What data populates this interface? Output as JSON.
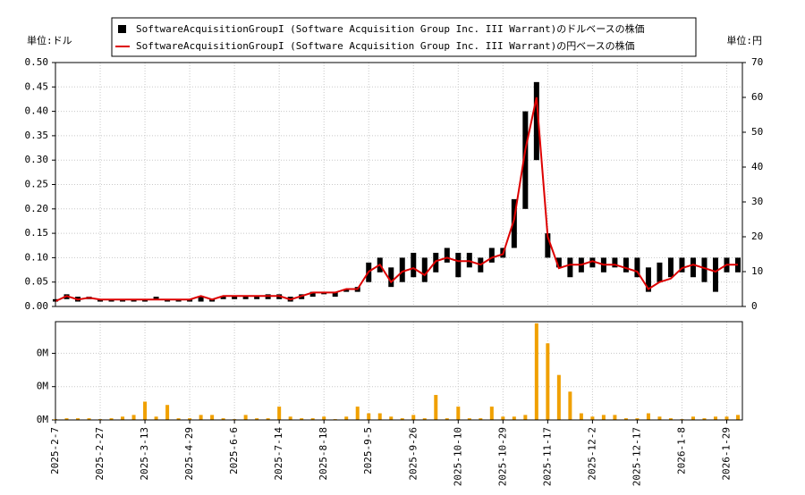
{
  "chart_data": [
    {
      "type": "range",
      "left_unit": "単位:ドル",
      "right_unit": "単位:円",
      "x": [
        0,
        5,
        10,
        15,
        20,
        25,
        30,
        35,
        40,
        45,
        50,
        55,
        60,
        65,
        70,
        75,
        80,
        85,
        90,
        95,
        100,
        105,
        110,
        115,
        120,
        125,
        130,
        135,
        140,
        145,
        150,
        155,
        160,
        165,
        170,
        175,
        180,
        185,
        190,
        195,
        200,
        205,
        210,
        215,
        220,
        225,
        230,
        235,
        240,
        245,
        250,
        255,
        260,
        265,
        270,
        275,
        280,
        285,
        290,
        295,
        300,
        305
      ],
      "xlim": [
        0,
        307
      ],
      "ylim": [
        0,
        0.5
      ],
      "yticks": [
        {
          "value": 0,
          "label": "0.00"
        },
        {
          "value": 0.05,
          "label": "0.05"
        },
        {
          "value": 0.1,
          "label": "0.10"
        },
        {
          "value": 0.15,
          "label": "0.15"
        },
        {
          "value": 0.2,
          "label": "0.20"
        },
        {
          "value": 0.25,
          "label": "0.25"
        },
        {
          "value": 0.3,
          "label": "0.30"
        },
        {
          "value": 0.35,
          "label": "0.35"
        },
        {
          "value": 0.4,
          "label": "0.40"
        },
        {
          "value": 0.45,
          "label": "0.45"
        },
        {
          "value": 0.5,
          "label": "0.50"
        }
      ],
      "y2lim": [
        0,
        70
      ],
      "y2ticks": [
        0,
        10,
        20,
        30,
        40,
        50,
        60,
        70
      ],
      "grid": true,
      "series": [
        {
          "name": "SoftwareAcquisitionGroupI (Software Acquisition Group Inc. III Warrant)のドルベースの株価",
          "color": "#000000",
          "high": [
            0.015,
            0.025,
            0.02,
            0.02,
            0.015,
            0.015,
            0.015,
            0.015,
            0.015,
            0.02,
            0.015,
            0.015,
            0.015,
            0.02,
            0.015,
            0.02,
            0.02,
            0.02,
            0.02,
            0.025,
            0.025,
            0.02,
            0.025,
            0.03,
            0.03,
            0.03,
            0.035,
            0.04,
            0.09,
            0.1,
            0.08,
            0.1,
            0.11,
            0.1,
            0.11,
            0.12,
            0.11,
            0.11,
            0.1,
            0.12,
            0.12,
            0.22,
            0.4,
            0.46,
            0.15,
            0.1,
            0.1,
            0.1,
            0.1,
            0.1,
            0.1,
            0.1,
            0.1,
            0.08,
            0.09,
            0.1,
            0.1,
            0.1,
            0.1,
            0.1,
            0.1,
            0.1
          ],
          "low": [
            0.01,
            0.015,
            0.01,
            0.015,
            0.01,
            0.01,
            0.01,
            0.01,
            0.01,
            0.015,
            0.01,
            0.01,
            0.01,
            0.01,
            0.01,
            0.015,
            0.015,
            0.015,
            0.015,
            0.015,
            0.015,
            0.01,
            0.015,
            0.02,
            0.025,
            0.02,
            0.03,
            0.03,
            0.05,
            0.07,
            0.04,
            0.05,
            0.06,
            0.05,
            0.07,
            0.09,
            0.06,
            0.08,
            0.07,
            0.09,
            0.1,
            0.12,
            0.2,
            0.3,
            0.1,
            0.08,
            0.06,
            0.07,
            0.08,
            0.07,
            0.08,
            0.07,
            0.06,
            0.03,
            0.05,
            0.06,
            0.07,
            0.06,
            0.05,
            0.03,
            0.07,
            0.07
          ]
        },
        {
          "name": "SoftwareAcquisitionGroupI (Software Acquisition Group Inc. III Warrant)の円ベースの株価",
          "color": "#dd0000",
          "axis": "y2",
          "values": [
            1.5,
            3,
            2,
            2.5,
            2,
            2,
            2,
            2,
            2,
            2,
            2,
            2,
            2,
            3,
            2,
            3,
            3,
            3,
            3,
            3,
            3,
            2,
            3,
            4,
            4,
            4,
            5,
            5,
            10,
            12,
            7,
            10,
            11,
            9,
            13,
            14,
            13,
            13,
            12,
            14,
            15,
            25,
            45,
            60,
            20,
            11,
            12,
            12,
            13,
            12,
            12,
            11,
            10,
            5,
            7,
            8,
            11,
            12,
            11,
            10,
            12,
            12
          ]
        }
      ]
    },
    {
      "type": "bar",
      "color": "#f0a000",
      "values": [
        5000,
        10000,
        10000,
        10000,
        5000,
        10000,
        20000,
        30000,
        110000,
        20000,
        90000,
        10000,
        10000,
        30000,
        30000,
        10000,
        5000,
        30000,
        10000,
        10000,
        80000,
        20000,
        10000,
        10000,
        20000,
        5000,
        20000,
        80000,
        40000,
        40000,
        20000,
        10000,
        30000,
        10000,
        150000,
        10000,
        80000,
        10000,
        10000,
        80000,
        20000,
        20000,
        30000,
        580000,
        460000,
        270000,
        170000,
        40000,
        20000,
        30000,
        30000,
        10000,
        10000,
        40000,
        20000,
        10000,
        5000,
        20000,
        10000,
        20000,
        20000,
        30000
      ],
      "ylim": [
        0,
        590000
      ],
      "yticks": [
        {
          "value": 0,
          "label": "0M"
        },
        {
          "value": 200000,
          "label": "0M"
        },
        {
          "value": 400000,
          "label": "0M"
        }
      ],
      "xticks": [
        {
          "value": 0,
          "label": "2025-2-7"
        },
        {
          "value": 20,
          "label": "2025-2-27"
        },
        {
          "value": 40,
          "label": "2025-3-13"
        },
        {
          "value": 60,
          "label": "2025-4-29"
        },
        {
          "value": 80,
          "label": "2025-6-6"
        },
        {
          "value": 100,
          "label": "2025-7-14"
        },
        {
          "value": 120,
          "label": "2025-8-18"
        },
        {
          "value": 140,
          "label": "2025-9-5"
        },
        {
          "value": 160,
          "label": "2025-9-26"
        },
        {
          "value": 180,
          "label": "2025-10-10"
        },
        {
          "value": 200,
          "label": "2025-10-29"
        },
        {
          "value": 220,
          "label": "2025-11-17"
        },
        {
          "value": 240,
          "label": "2025-12-2"
        },
        {
          "value": 260,
          "label": "2025-12-17"
        },
        {
          "value": 280,
          "label": "2026-1-8"
        },
        {
          "value": 300,
          "label": "2026-1-29"
        }
      ]
    }
  ]
}
